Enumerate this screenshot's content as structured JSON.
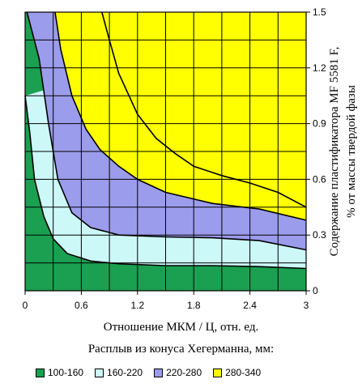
{
  "chart_data": {
    "type": "area",
    "xlabel": "Отношение МКМ / Ц, отн. ед.",
    "ylabel": "Содержание пластификатора MF 5581 F, % от массы твердой фазы",
    "xlim": [
      0,
      3
    ],
    "ylim": [
      0,
      1.5
    ],
    "x_ticks": [
      "0",
      "0.6",
      "1.2",
      "1.8",
      "2.4",
      "3"
    ],
    "y_ticks": [
      "0",
      "0.3",
      "0.6",
      "0.9",
      "1.2",
      "1.5"
    ],
    "y_axis_side": "right",
    "grid": true,
    "legend_title": "Расплыв из конуса Хегерманна, мм:",
    "legend_position": "bottom",
    "bands": [
      {
        "name": "100-160",
        "color": "#1aa050"
      },
      {
        "name": "160-220",
        "color": "#ccf8f8"
      },
      {
        "name": "220-280",
        "color": "#9c9cec"
      },
      {
        "name": "280-340",
        "color": "#ffff00"
      }
    ],
    "contours": [
      {
        "level": "160",
        "points": [
          [
            0.0,
            1.05
          ],
          [
            0.05,
            0.85
          ],
          [
            0.1,
            0.6
          ],
          [
            0.2,
            0.4
          ],
          [
            0.3,
            0.28
          ],
          [
            0.45,
            0.2
          ],
          [
            0.7,
            0.16
          ],
          [
            1.0,
            0.145
          ],
          [
            1.5,
            0.135
          ],
          [
            2.0,
            0.135
          ],
          [
            2.5,
            0.13
          ],
          [
            3.0,
            0.12
          ]
        ]
      },
      {
        "level": "220",
        "points": [
          [
            0.02,
            1.5
          ],
          [
            0.15,
            1.25
          ],
          [
            0.25,
            0.9
          ],
          [
            0.35,
            0.6
          ],
          [
            0.5,
            0.42
          ],
          [
            0.7,
            0.34
          ],
          [
            1.0,
            0.3
          ],
          [
            1.5,
            0.29
          ],
          [
            2.0,
            0.285
          ],
          [
            2.5,
            0.27
          ],
          [
            3.0,
            0.22
          ]
        ]
      },
      {
        "level": "280",
        "points": [
          [
            0.32,
            1.5
          ],
          [
            0.38,
            1.3
          ],
          [
            0.5,
            1.05
          ],
          [
            0.65,
            0.87
          ],
          [
            0.8,
            0.76
          ],
          [
            1.0,
            0.67
          ],
          [
            1.2,
            0.6
          ],
          [
            1.5,
            0.53
          ],
          [
            2.0,
            0.47
          ],
          [
            2.5,
            0.44
          ],
          [
            3.0,
            0.38
          ]
        ]
      },
      {
        "level": "340",
        "points": [
          [
            0.82,
            1.5
          ],
          [
            0.9,
            1.35
          ],
          [
            1.0,
            1.17
          ],
          [
            1.2,
            0.95
          ],
          [
            1.4,
            0.82
          ],
          [
            1.6,
            0.74
          ],
          [
            1.8,
            0.67
          ],
          [
            2.1,
            0.62
          ],
          [
            2.4,
            0.58
          ],
          [
            2.7,
            0.53
          ],
          [
            3.0,
            0.45
          ]
        ]
      }
    ]
  }
}
